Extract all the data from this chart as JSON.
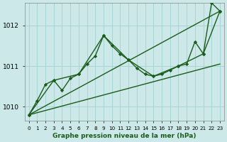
{
  "title": "Graphe pression niveau de la mer (hPa)",
  "background_color": "#cce8e8",
  "grid_color": "#a8d4d4",
  "line_color": "#1a5c1a",
  "marker_color": "#1a5c1a",
  "xlim": [
    -0.5,
    23.5
  ],
  "ylim": [
    1009.65,
    1012.55
  ],
  "yticks": [
    1010,
    1011,
    1012
  ],
  "xticks": [
    0,
    1,
    2,
    3,
    4,
    5,
    6,
    7,
    8,
    9,
    10,
    11,
    12,
    13,
    14,
    15,
    16,
    17,
    18,
    19,
    20,
    21,
    22,
    23
  ],
  "series": [
    {
      "x": [
        0,
        1,
        2,
        3,
        4,
        5,
        6,
        7,
        8,
        9,
        10,
        11,
        12,
        13,
        14,
        15,
        16,
        17,
        18,
        19,
        20,
        21,
        22,
        23
      ],
      "y": [
        1009.8,
        1010.15,
        1010.55,
        1010.65,
        1010.4,
        1010.7,
        1010.8,
        1011.05,
        1011.25,
        1011.75,
        1011.5,
        1011.3,
        1011.15,
        1010.95,
        1010.8,
        1010.75,
        1010.8,
        1010.9,
        1011.0,
        1011.05,
        1011.6,
        1011.3,
        1012.55,
        1012.35
      ],
      "marker": true,
      "lw": 1.0
    },
    {
      "x": [
        0,
        23
      ],
      "y": [
        1009.8,
        1012.35
      ],
      "marker": false,
      "lw": 1.0
    },
    {
      "x": [
        0,
        23
      ],
      "y": [
        1009.8,
        1011.05
      ],
      "marker": false,
      "lw": 1.0
    },
    {
      "x": [
        0,
        3,
        6,
        9,
        12,
        15,
        18,
        21,
        23
      ],
      "y": [
        1009.8,
        1010.65,
        1010.8,
        1011.75,
        1011.15,
        1010.75,
        1011.0,
        1011.3,
        1012.35
      ],
      "marker": true,
      "lw": 1.0
    }
  ]
}
